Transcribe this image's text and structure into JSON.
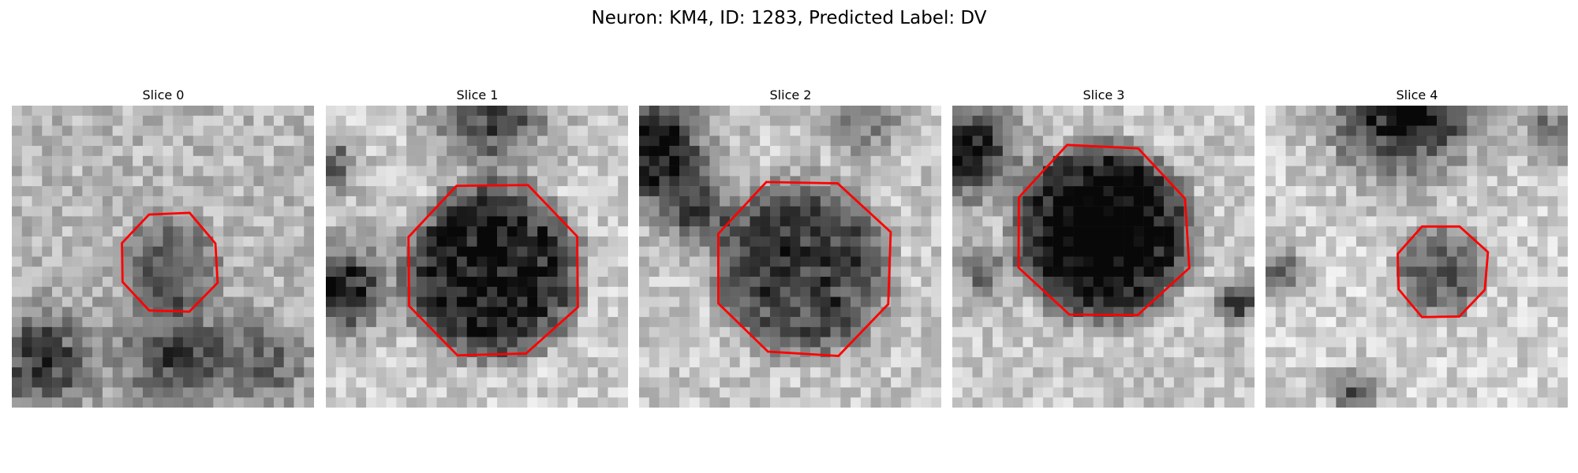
{
  "title": "Neuron: KM4, ID: 1283, Predicted Label: DV",
  "contour_color": "#ff0000",
  "panels": [
    {
      "label": "Slice 0",
      "center": [
        0.52,
        0.52
      ],
      "radius": 0.17,
      "dark": 0.3,
      "bg": 0.72,
      "blobs": [
        [
          0.1,
          0.85,
          0.15,
          0.55
        ],
        [
          0.55,
          0.82,
          0.18,
          0.45
        ],
        [
          0.85,
          0.85,
          0.12,
          0.35
        ]
      ]
    },
    {
      "label": "Slice 1",
      "center": [
        0.55,
        0.55
      ],
      "radius": 0.3,
      "dark": 0.78,
      "bg": 0.8,
      "blobs": [
        [
          0.05,
          0.6,
          0.14,
          0.75
        ],
        [
          0.55,
          0.02,
          0.18,
          0.55
        ],
        [
          0.02,
          0.2,
          0.08,
          0.5
        ]
      ]
    },
    {
      "label": "Slice 2",
      "center": [
        0.54,
        0.54
      ],
      "radius": 0.3,
      "dark": 0.58,
      "bg": 0.78,
      "blobs": [
        [
          0.05,
          0.15,
          0.16,
          0.85
        ],
        [
          0.2,
          0.35,
          0.1,
          0.5
        ],
        [
          0.75,
          0.05,
          0.12,
          0.3
        ]
      ]
    },
    {
      "label": "Slice 3",
      "center": [
        0.5,
        0.42
      ],
      "radius": 0.3,
      "dark": 0.88,
      "bg": 0.78,
      "blobs": [
        [
          0.05,
          0.15,
          0.15,
          0.75
        ],
        [
          0.95,
          0.65,
          0.07,
          0.55
        ],
        [
          0.1,
          0.55,
          0.08,
          0.35
        ]
      ]
    },
    {
      "label": "Slice 4",
      "center": [
        0.58,
        0.55
      ],
      "radius": 0.16,
      "dark": 0.45,
      "bg": 0.82,
      "blobs": [
        [
          0.45,
          0.0,
          0.22,
          0.85
        ],
        [
          0.05,
          0.55,
          0.08,
          0.5
        ],
        [
          0.3,
          0.95,
          0.08,
          0.45
        ],
        [
          0.95,
          0.1,
          0.1,
          0.4
        ]
      ]
    }
  ]
}
